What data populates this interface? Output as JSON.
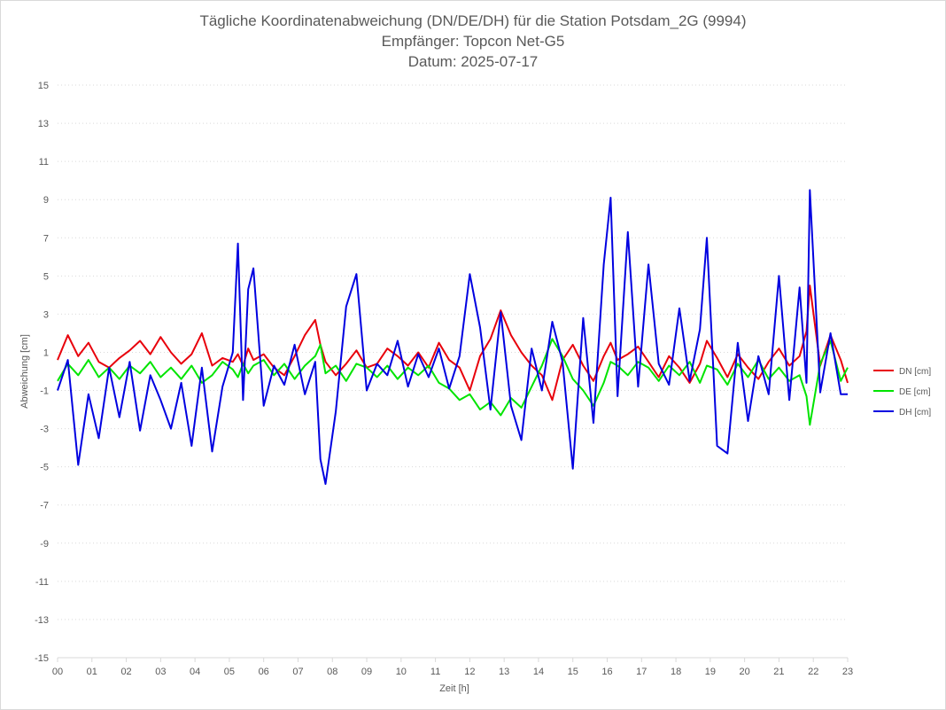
{
  "chart_data": {
    "type": "line",
    "title_lines": [
      "Tägliche Koordinatenabweichung (DN/DE/DH) für die Station Potsdam_2G (9994)",
      "Empfänger: Topcon Net-G5",
      "Datum: 2025-07-17"
    ],
    "xlabel": "Zeit [h]",
    "ylabel": "Abweichung [cm]",
    "xlim": [
      0,
      23
    ],
    "ylim": [
      -15,
      15
    ],
    "x_ticks": [
      "00",
      "01",
      "02",
      "03",
      "04",
      "05",
      "06",
      "07",
      "08",
      "09",
      "10",
      "11",
      "12",
      "13",
      "14",
      "15",
      "16",
      "17",
      "18",
      "19",
      "20",
      "21",
      "22",
      "23"
    ],
    "y_ticks": [
      15,
      13,
      11,
      9,
      7,
      5,
      3,
      1,
      -1,
      -3,
      -5,
      -7,
      -9,
      -11,
      -13,
      -15
    ],
    "grid": "horizontal-dotted",
    "legend_position": "right",
    "x": [
      0.0,
      0.3,
      0.6,
      0.9,
      1.2,
      1.5,
      1.8,
      2.1,
      2.4,
      2.7,
      3.0,
      3.3,
      3.6,
      3.9,
      4.2,
      4.5,
      4.8,
      5.1,
      5.25,
      5.4,
      5.55,
      5.7,
      6.0,
      6.3,
      6.6,
      6.9,
      7.2,
      7.5,
      7.65,
      7.8,
      8.1,
      8.4,
      8.7,
      9.0,
      9.3,
      9.6,
      9.9,
      10.2,
      10.5,
      10.8,
      11.1,
      11.4,
      11.7,
      12.0,
      12.3,
      12.6,
      12.9,
      13.2,
      13.5,
      13.8,
      14.1,
      14.4,
      14.7,
      15.0,
      15.3,
      15.6,
      15.9,
      16.1,
      16.3,
      16.6,
      16.9,
      17.2,
      17.5,
      17.8,
      18.1,
      18.4,
      18.7,
      18.9,
      19.2,
      19.5,
      19.8,
      20.1,
      20.4,
      20.7,
      21.0,
      21.3,
      21.6,
      21.8,
      21.9,
      22.2,
      22.5,
      22.8,
      23.0
    ],
    "series": [
      {
        "name": "DN [cm]",
        "color": "#e8000b",
        "values": [
          0.6,
          1.9,
          0.8,
          1.5,
          0.5,
          0.2,
          0.7,
          1.1,
          1.6,
          0.9,
          1.8,
          1.0,
          0.4,
          0.9,
          2.0,
          0.3,
          0.7,
          0.5,
          0.9,
          0.3,
          1.2,
          0.6,
          0.9,
          0.2,
          -0.2,
          0.8,
          1.9,
          2.7,
          1.4,
          0.5,
          -0.2,
          0.4,
          1.1,
          0.2,
          0.4,
          1.2,
          0.8,
          0.3,
          1.0,
          0.2,
          1.5,
          0.6,
          0.2,
          -1.0,
          0.8,
          1.7,
          3.2,
          1.9,
          1.0,
          0.3,
          -0.2,
          -1.5,
          0.6,
          1.4,
          0.3,
          -0.5,
          0.8,
          1.5,
          0.6,
          0.9,
          1.3,
          0.5,
          -0.3,
          0.8,
          0.2,
          -0.6,
          0.4,
          1.6,
          0.7,
          -0.3,
          0.9,
          0.2,
          -0.4,
          0.5,
          1.2,
          0.3,
          0.8,
          2.1,
          4.5,
          0.3,
          1.9,
          0.6,
          -0.6
        ]
      },
      {
        "name": "DE [cm]",
        "color": "#00e400",
        "values": [
          -0.5,
          0.4,
          -0.2,
          0.6,
          -0.3,
          0.2,
          -0.4,
          0.3,
          -0.1,
          0.5,
          -0.3,
          0.2,
          -0.4,
          0.3,
          -0.6,
          -0.2,
          0.5,
          0.1,
          -0.3,
          0.4,
          -0.1,
          0.3,
          0.6,
          -0.2,
          0.4,
          -0.4,
          0.3,
          0.8,
          1.4,
          -0.1,
          0.3,
          -0.5,
          0.4,
          0.2,
          -0.3,
          0.3,
          -0.4,
          0.2,
          -0.2,
          0.3,
          -0.6,
          -0.9,
          -1.5,
          -1.2,
          -2.0,
          -1.6,
          -2.3,
          -1.4,
          -1.9,
          -0.8,
          0.3,
          1.7,
          0.8,
          -0.4,
          -1.0,
          -1.8,
          -0.6,
          0.5,
          0.3,
          -0.2,
          0.5,
          0.2,
          -0.5,
          0.3,
          -0.2,
          0.5,
          -0.6,
          0.3,
          0.1,
          -0.7,
          0.4,
          -0.3,
          0.6,
          -0.4,
          0.2,
          -0.5,
          -0.2,
          -1.3,
          -2.8,
          0.4,
          1.6,
          -0.5,
          0.2
        ]
      },
      {
        "name": "DH [cm]",
        "color": "#0000e0",
        "values": [
          -1.0,
          0.6,
          -4.9,
          -1.2,
          -3.5,
          0.2,
          -2.4,
          0.5,
          -3.1,
          -0.2,
          -1.5,
          -3.0,
          -0.6,
          -3.9,
          0.2,
          -4.2,
          -0.8,
          1.0,
          6.7,
          -1.5,
          4.3,
          5.4,
          -1.8,
          0.3,
          -0.7,
          1.4,
          -1.2,
          0.5,
          -4.6,
          -5.9,
          -2.1,
          3.4,
          5.1,
          -1.0,
          0.4,
          -0.2,
          1.6,
          -0.8,
          0.9,
          -0.3,
          1.2,
          -0.9,
          0.8,
          5.1,
          2.3,
          -2.0,
          3.1,
          -1.8,
          -3.6,
          1.2,
          -1.0,
          2.6,
          0.5,
          -5.1,
          2.8,
          -2.7,
          5.6,
          9.1,
          -1.3,
          7.3,
          -0.8,
          5.6,
          0.4,
          -0.7,
          3.3,
          -0.5,
          2.2,
          7.0,
          -3.9,
          -4.3,
          1.5,
          -2.6,
          0.8,
          -1.2,
          5.0,
          -1.5,
          4.4,
          -0.6,
          9.5,
          -1.1,
          2.0,
          -1.2,
          -1.2
        ]
      }
    ]
  }
}
